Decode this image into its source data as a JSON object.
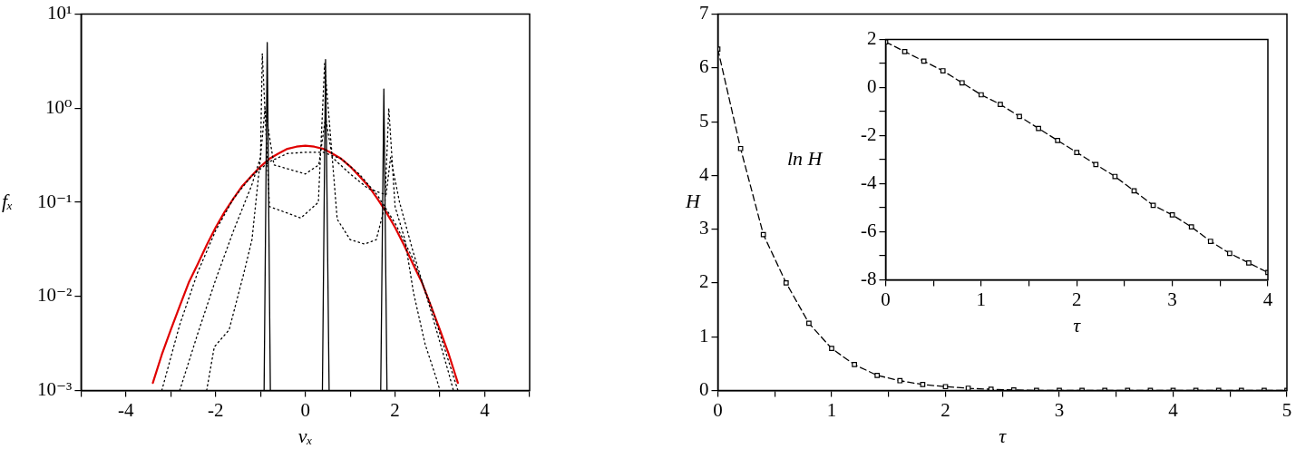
{
  "chart_data": [
    {
      "type": "line",
      "xlabel": "vₓ",
      "ylabel": "fₓ",
      "xlim": [
        -5,
        5
      ],
      "xticks": [
        {
          "value": -5,
          "label": null
        },
        -4,
        {
          "value": -3,
          "label": null
        },
        -2,
        {
          "value": -1,
          "label": null
        },
        0,
        {
          "value": 1,
          "label": null
        },
        2,
        {
          "value": 3,
          "label": null
        },
        4,
        {
          "value": 5,
          "label": null
        }
      ],
      "ylim": [
        0.001,
        10
      ],
      "yticks": [
        {
          "value": 0.001,
          "label": "10⁻³"
        },
        {
          "value": 0.01,
          "label": "10⁻²"
        },
        {
          "value": 0.1,
          "label": "10⁻¹"
        },
        {
          "value": 1,
          "label": "10⁰"
        },
        {
          "value": 10,
          "label": "10¹"
        }
      ],
      "log": "y",
      "grid": false,
      "legend": false,
      "marker": "none",
      "series": [
        {
          "color": "#000000",
          "line_style": "solid",
          "x": [
            -0.92,
            -0.85,
            -0.78,
            -0.5,
            0.38,
            0.45,
            0.53,
            1.0,
            1.68,
            1.75,
            1.82
          ],
          "values": [
            0.001,
            5,
            0.001,
            null,
            0.001,
            3.3,
            0.001,
            null,
            0.001,
            1.6,
            0.001
          ]
        },
        {
          "color": "#000000",
          "line_style": "dotted",
          "x": [
            -2.2,
            -2.03,
            -1.7,
            -1.38,
            -1.19,
            -1.0,
            -0.96,
            -0.8,
            -0.1,
            0.29,
            0.43,
            0.71,
            1.0,
            1.32,
            1.58,
            1.77,
            1.86,
            2.0,
            2.22,
            2.41,
            2.67,
            2.93,
            3.0
          ],
          "values": [
            0.001,
            0.0029,
            0.0044,
            0.017,
            0.04,
            0.3,
            3.8,
            0.09,
            0.068,
            0.1,
            3,
            0.066,
            0.04,
            0.036,
            0.04,
            0.09,
            1.0,
            0.09,
            0.04,
            0.011,
            0.0031,
            0.0013,
            0.001
          ]
        },
        {
          "color": "#000000",
          "line_style": "dotted",
          "x": [
            -2.8,
            -2.4,
            -2.0,
            -1.6,
            -1.2,
            -1.0,
            -0.9,
            -0.7,
            0,
            0.3,
            0.45,
            0.6,
            1.0,
            1.4,
            1.8,
            1.9,
            2.1,
            2.4,
            2.8,
            3.2,
            3.3
          ],
          "values": [
            0.001,
            0.004,
            0.015,
            0.05,
            0.15,
            0.3,
            1.0,
            0.25,
            0.2,
            0.25,
            0.8,
            0.3,
            0.2,
            0.14,
            0.12,
            0.3,
            0.1,
            0.03,
            0.007,
            0.0015,
            0.001
          ]
        },
        {
          "color": "#000000",
          "line_style": "dotted",
          "x": [
            -3.2,
            -2.8,
            -2.4,
            -2.0,
            -1.6,
            -1.2,
            -0.8,
            -0.4,
            0,
            0.4,
            0.8,
            1.2,
            1.6,
            2.0,
            2.4,
            2.8,
            3.2,
            3.4
          ],
          "values": [
            0.001,
            0.005,
            0.018,
            0.05,
            0.11,
            0.19,
            0.27,
            0.33,
            0.34,
            0.34,
            0.29,
            0.2,
            0.12,
            0.06,
            0.025,
            0.008,
            0.002,
            0.001
          ]
        },
        {
          "color": "#e00000",
          "line_style": "solid",
          "x": [
            -3.4,
            -3.2,
            -3.0,
            -2.8,
            -2.6,
            -2.4,
            -2.2,
            -2.0,
            -1.8,
            -1.6,
            -1.4,
            -1.2,
            -1.0,
            -0.8,
            -0.6,
            -0.4,
            -0.2,
            0,
            0.2,
            0.4,
            0.6,
            0.8,
            1.0,
            1.2,
            1.4,
            1.6,
            1.8,
            2.0,
            2.2,
            2.4,
            2.6,
            2.8,
            3.0,
            3.2,
            3.4
          ],
          "values": [
            0.0012,
            0.0024,
            0.0044,
            0.0079,
            0.014,
            0.022,
            0.035,
            0.054,
            0.079,
            0.11,
            0.15,
            0.19,
            0.24,
            0.29,
            0.33,
            0.37,
            0.39,
            0.4,
            0.39,
            0.37,
            0.33,
            0.29,
            0.24,
            0.19,
            0.15,
            0.11,
            0.079,
            0.054,
            0.035,
            0.022,
            0.014,
            0.0079,
            0.0044,
            0.0024,
            0.0012
          ]
        }
      ]
    },
    {
      "type": "line",
      "xlabel": "τ",
      "ylabel": "H",
      "xlim": [
        0,
        5
      ],
      "xticks": [
        0,
        {
          "value": 0.5,
          "label": null
        },
        1,
        {
          "value": 1.5,
          "label": null
        },
        2,
        {
          "value": 2.5,
          "label": null
        },
        3,
        {
          "value": 3.5,
          "label": null
        },
        4,
        {
          "value": 4.5,
          "label": null
        },
        5
      ],
      "ylim": [
        0,
        7
      ],
      "yticks": [
        0,
        1,
        2,
        3,
        4,
        5,
        6,
        7
      ],
      "grid": false,
      "legend": false,
      "marker": "square",
      "line_style": "dashed",
      "x": [
        0,
        0.2,
        0.4,
        0.6,
        0.8,
        1.0,
        1.2,
        1.4,
        1.6,
        1.8,
        2.0,
        2.2,
        2.4,
        2.6,
        2.8,
        3.0,
        3.2,
        3.4,
        3.6,
        3.8,
        4.0,
        4.2,
        4.4,
        4.6,
        4.8,
        5.0
      ],
      "series": [
        {
          "color": "#000000",
          "values": [
            6.35,
            4.5,
            2.9,
            2.0,
            1.25,
            0.78,
            0.48,
            0.28,
            0.18,
            0.11,
            0.07,
            0.04,
            0.02,
            0.01,
            0,
            0,
            0,
            0,
            0,
            0,
            0,
            0,
            0,
            0,
            0,
            0
          ]
        }
      ]
    },
    {
      "type": "line",
      "xlabel": "τ",
      "ylabel": "ln H",
      "xlim": [
        0,
        4
      ],
      "xticks": [
        0,
        {
          "value": 0.5,
          "label": null
        },
        1,
        {
          "value": 1.5,
          "label": null
        },
        2,
        {
          "value": 2.5,
          "label": null
        },
        3,
        {
          "value": 3.5,
          "label": null
        },
        4
      ],
      "ylim": [
        -8,
        2
      ],
      "yticks": [
        -8,
        {
          "value": -7,
          "label": null
        },
        -6,
        {
          "value": -5,
          "label": null
        },
        -4,
        {
          "value": -3,
          "label": null
        },
        -2,
        {
          "value": -1,
          "label": null
        },
        0,
        {
          "value": 1,
          "label": null
        },
        2
      ],
      "grid": false,
      "legend": false,
      "marker": "square",
      "line_style": "dashed",
      "x": [
        0,
        0.2,
        0.4,
        0.6,
        0.8,
        1.0,
        1.2,
        1.4,
        1.6,
        1.8,
        2.0,
        2.2,
        2.4,
        2.6,
        2.8,
        3.0,
        3.2,
        3.4,
        3.6,
        3.8,
        4.0
      ],
      "series": [
        {
          "color": "#000000",
          "values": [
            1.9,
            1.5,
            1.1,
            0.7,
            0.2,
            -0.3,
            -0.7,
            -1.2,
            -1.7,
            -2.2,
            -2.7,
            -3.2,
            -3.7,
            -4.3,
            -4.9,
            -5.3,
            -5.8,
            -6.4,
            -6.9,
            -7.3,
            -7.7
          ]
        }
      ]
    }
  ]
}
